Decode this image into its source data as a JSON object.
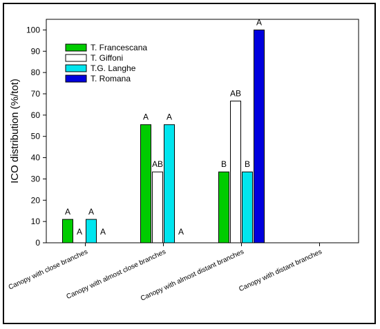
{
  "chart_data": {
    "type": "bar",
    "title": "",
    "xlabel": "",
    "ylabel": "ICO distribution (%/tot)",
    "ylim": [
      0,
      105
    ],
    "yticks": [
      0,
      10,
      20,
      30,
      40,
      50,
      60,
      70,
      80,
      90,
      100
    ],
    "grid": false,
    "legend_position": "top-left",
    "categories": [
      "Canopy with close branches",
      "Canopy with almost close branches",
      "Canopy with almost distant branches",
      "Canopy with distant branches"
    ],
    "series": [
      {
        "name": "T. Francescana",
        "color": "#00cc00",
        "values": [
          11,
          55.5,
          33.3,
          0
        ],
        "labels": [
          "A",
          "A",
          "B",
          ""
        ]
      },
      {
        "name": "T. Giffoni",
        "color": "#ffffff",
        "values": [
          0,
          33.3,
          66.6,
          0
        ],
        "labels": [
          "A",
          "AB",
          "AB",
          ""
        ]
      },
      {
        "name": "T.G. Langhe",
        "color": "#00e5ee",
        "values": [
          11,
          55.5,
          33.3,
          0
        ],
        "labels": [
          "A",
          "A",
          "B",
          ""
        ]
      },
      {
        "name": "T. Romana",
        "color": "#0000dd",
        "values": [
          0,
          0,
          100,
          0
        ],
        "labels": [
          "A",
          "A",
          "A",
          ""
        ]
      }
    ]
  }
}
